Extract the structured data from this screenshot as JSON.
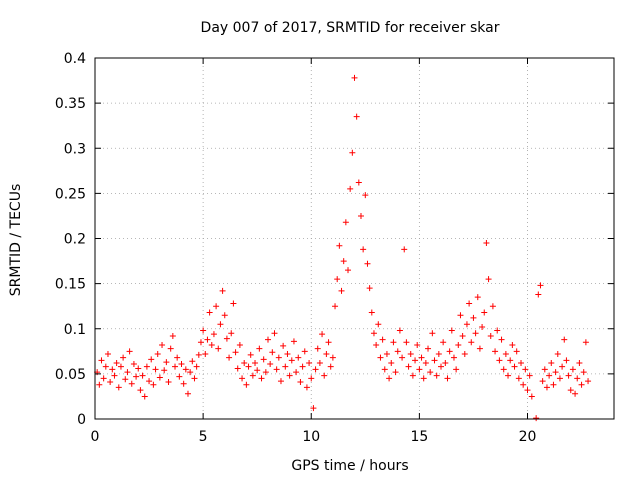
{
  "chart_data": {
    "type": "scatter",
    "title": "Day 007 of 2017, SRMTID for receiver skar",
    "xlabel": "GPS time / hours",
    "ylabel": "SRMTID / TECUs",
    "xlim": [
      0,
      24
    ],
    "ylim": [
      0,
      0.4
    ],
    "x_ticks": [
      0,
      5,
      10,
      15,
      20
    ],
    "x_tick_labels": [
      "0",
      "5",
      "10",
      "15",
      "20"
    ],
    "y_ticks": [
      0,
      0.05,
      0.1,
      0.15,
      0.2,
      0.25,
      0.3,
      0.35,
      0.4
    ],
    "y_tick_labels": [
      "0",
      "0.05",
      "0.1",
      "0.15",
      "0.2",
      "0.25",
      "0.3",
      "0.35",
      "0.4"
    ],
    "grid": true,
    "marker": "plus",
    "color": "#ff0000",
    "series": [
      {
        "name": "SRMTID",
        "points": [
          [
            0.1,
            0.052
          ],
          [
            0.2,
            0.038
          ],
          [
            0.3,
            0.065
          ],
          [
            0.4,
            0.045
          ],
          [
            0.5,
            0.058
          ],
          [
            0.6,
            0.072
          ],
          [
            0.7,
            0.041
          ],
          [
            0.8,
            0.055
          ],
          [
            0.9,
            0.048
          ],
          [
            1.0,
            0.062
          ],
          [
            1.1,
            0.035
          ],
          [
            1.2,
            0.058
          ],
          [
            1.3,
            0.068
          ],
          [
            1.4,
            0.044
          ],
          [
            1.5,
            0.052
          ],
          [
            1.6,
            0.075
          ],
          [
            1.7,
            0.039
          ],
          [
            1.8,
            0.061
          ],
          [
            1.9,
            0.047
          ],
          [
            2.0,
            0.056
          ],
          [
            2.1,
            0.032
          ],
          [
            2.2,
            0.048
          ],
          [
            2.3,
            0.025
          ],
          [
            2.4,
            0.058
          ],
          [
            2.5,
            0.042
          ],
          [
            2.6,
            0.066
          ],
          [
            2.7,
            0.038
          ],
          [
            2.8,
            0.055
          ],
          [
            2.9,
            0.072
          ],
          [
            3.0,
            0.046
          ],
          [
            3.1,
            0.082
          ],
          [
            3.2,
            0.054
          ],
          [
            3.3,
            0.063
          ],
          [
            3.4,
            0.041
          ],
          [
            3.5,
            0.078
          ],
          [
            3.6,
            0.092
          ],
          [
            3.7,
            0.058
          ],
          [
            3.8,
            0.068
          ],
          [
            3.9,
            0.047
          ],
          [
            4.0,
            0.061
          ],
          [
            4.1,
            0.039
          ],
          [
            4.2,
            0.055
          ],
          [
            4.3,
            0.028
          ],
          [
            4.4,
            0.052
          ],
          [
            4.5,
            0.064
          ],
          [
            4.6,
            0.045
          ],
          [
            4.7,
            0.058
          ],
          [
            4.8,
            0.071
          ],
          [
            4.9,
            0.085
          ],
          [
            5.0,
            0.098
          ],
          [
            5.1,
            0.072
          ],
          [
            5.2,
            0.088
          ],
          [
            5.3,
            0.118
          ],
          [
            5.4,
            0.082
          ],
          [
            5.5,
            0.094
          ],
          [
            5.6,
            0.125
          ],
          [
            5.7,
            0.078
          ],
          [
            5.8,
            0.105
          ],
          [
            5.9,
            0.142
          ],
          [
            6.0,
            0.115
          ],
          [
            6.1,
            0.089
          ],
          [
            6.2,
            0.068
          ],
          [
            6.3,
            0.095
          ],
          [
            6.4,
            0.128
          ],
          [
            6.5,
            0.074
          ],
          [
            6.6,
            0.056
          ],
          [
            6.7,
            0.082
          ],
          [
            6.8,
            0.045
          ],
          [
            6.9,
            0.062
          ],
          [
            7.0,
            0.038
          ],
          [
            7.1,
            0.058
          ],
          [
            7.2,
            0.071
          ],
          [
            7.3,
            0.048
          ],
          [
            7.4,
            0.062
          ],
          [
            7.5,
            0.054
          ],
          [
            7.6,
            0.078
          ],
          [
            7.7,
            0.045
          ],
          [
            7.8,
            0.066
          ],
          [
            7.9,
            0.052
          ],
          [
            8.0,
            0.088
          ],
          [
            8.1,
            0.061
          ],
          [
            8.2,
            0.074
          ],
          [
            8.3,
            0.095
          ],
          [
            8.4,
            0.055
          ],
          [
            8.5,
            0.068
          ],
          [
            8.6,
            0.042
          ],
          [
            8.7,
            0.081
          ],
          [
            8.8,
            0.058
          ],
          [
            8.9,
            0.072
          ],
          [
            9.0,
            0.048
          ],
          [
            9.1,
            0.065
          ],
          [
            9.2,
            0.086
          ],
          [
            9.3,
            0.052
          ],
          [
            9.4,
            0.068
          ],
          [
            9.5,
            0.041
          ],
          [
            9.6,
            0.058
          ],
          [
            9.7,
            0.075
          ],
          [
            9.8,
            0.035
          ],
          [
            9.9,
            0.062
          ],
          [
            10.0,
            0.045
          ],
          [
            10.1,
            0.012
          ],
          [
            10.2,
            0.055
          ],
          [
            10.3,
            0.078
          ],
          [
            10.4,
            0.062
          ],
          [
            10.5,
            0.094
          ],
          [
            10.6,
            0.048
          ],
          [
            10.7,
            0.072
          ],
          [
            10.8,
            0.085
          ],
          [
            10.9,
            0.058
          ],
          [
            11.0,
            0.068
          ],
          [
            11.1,
            0.125
          ],
          [
            11.2,
            0.155
          ],
          [
            11.3,
            0.192
          ],
          [
            11.4,
            0.142
          ],
          [
            11.5,
            0.175
          ],
          [
            11.6,
            0.218
          ],
          [
            11.7,
            0.165
          ],
          [
            11.8,
            0.255
          ],
          [
            11.9,
            0.295
          ],
          [
            12.0,
            0.378
          ],
          [
            12.1,
            0.335
          ],
          [
            12.2,
            0.262
          ],
          [
            12.3,
            0.225
          ],
          [
            12.4,
            0.188
          ],
          [
            12.5,
            0.248
          ],
          [
            12.6,
            0.172
          ],
          [
            12.7,
            0.145
          ],
          [
            12.8,
            0.118
          ],
          [
            12.9,
            0.095
          ],
          [
            13.0,
            0.082
          ],
          [
            13.1,
            0.105
          ],
          [
            13.2,
            0.068
          ],
          [
            13.3,
            0.088
          ],
          [
            13.4,
            0.055
          ],
          [
            13.5,
            0.072
          ],
          [
            13.6,
            0.045
          ],
          [
            13.7,
            0.062
          ],
          [
            13.8,
            0.085
          ],
          [
            13.9,
            0.052
          ],
          [
            14.0,
            0.075
          ],
          [
            14.1,
            0.098
          ],
          [
            14.2,
            0.068
          ],
          [
            14.3,
            0.188
          ],
          [
            14.4,
            0.085
          ],
          [
            14.5,
            0.058
          ],
          [
            14.6,
            0.072
          ],
          [
            14.7,
            0.048
          ],
          [
            14.8,
            0.065
          ],
          [
            14.9,
            0.082
          ],
          [
            15.0,
            0.055
          ],
          [
            15.1,
            0.068
          ],
          [
            15.2,
            0.045
          ],
          [
            15.3,
            0.062
          ],
          [
            15.4,
            0.078
          ],
          [
            15.5,
            0.052
          ],
          [
            15.6,
            0.095
          ],
          [
            15.7,
            0.065
          ],
          [
            15.8,
            0.048
          ],
          [
            15.9,
            0.072
          ],
          [
            16.0,
            0.058
          ],
          [
            16.1,
            0.085
          ],
          [
            16.2,
            0.062
          ],
          [
            16.3,
            0.045
          ],
          [
            16.4,
            0.075
          ],
          [
            16.5,
            0.098
          ],
          [
            16.6,
            0.068
          ],
          [
            16.7,
            0.055
          ],
          [
            16.8,
            0.082
          ],
          [
            16.9,
            0.115
          ],
          [
            17.0,
            0.092
          ],
          [
            17.1,
            0.072
          ],
          [
            17.2,
            0.105
          ],
          [
            17.3,
            0.128
          ],
          [
            17.4,
            0.085
          ],
          [
            17.5,
            0.112
          ],
          [
            17.6,
            0.095
          ],
          [
            17.7,
            0.135
          ],
          [
            17.8,
            0.078
          ],
          [
            17.9,
            0.102
          ],
          [
            18.0,
            0.118
          ],
          [
            18.1,
            0.195
          ],
          [
            18.2,
            0.155
          ],
          [
            18.3,
            0.092
          ],
          [
            18.4,
            0.125
          ],
          [
            18.5,
            0.075
          ],
          [
            18.6,
            0.098
          ],
          [
            18.7,
            0.065
          ],
          [
            18.8,
            0.088
          ],
          [
            18.9,
            0.055
          ],
          [
            19.0,
            0.072
          ],
          [
            19.1,
            0.048
          ],
          [
            19.2,
            0.065
          ],
          [
            19.3,
            0.082
          ],
          [
            19.4,
            0.058
          ],
          [
            19.5,
            0.075
          ],
          [
            19.6,
            0.045
          ],
          [
            19.7,
            0.062
          ],
          [
            19.8,
            0.038
          ],
          [
            19.9,
            0.055
          ],
          [
            20.0,
            0.032
          ],
          [
            20.1,
            0.048
          ],
          [
            20.2,
            0.025
          ],
          [
            20.4,
            0.001
          ],
          [
            20.5,
            0.138
          ],
          [
            20.6,
            0.148
          ],
          [
            20.7,
            0.042
          ],
          [
            20.8,
            0.055
          ],
          [
            20.9,
            0.035
          ],
          [
            21.0,
            0.048
          ],
          [
            21.1,
            0.062
          ],
          [
            21.2,
            0.038
          ],
          [
            21.3,
            0.052
          ],
          [
            21.4,
            0.072
          ],
          [
            21.5,
            0.045
          ],
          [
            21.6,
            0.058
          ],
          [
            21.7,
            0.088
          ],
          [
            21.8,
            0.065
          ],
          [
            21.9,
            0.048
          ],
          [
            22.0,
            0.032
          ],
          [
            22.1,
            0.055
          ],
          [
            22.2,
            0.028
          ],
          [
            22.3,
            0.045
          ],
          [
            22.4,
            0.062
          ],
          [
            22.5,
            0.038
          ],
          [
            22.6,
            0.052
          ],
          [
            22.7,
            0.085
          ],
          [
            22.8,
            0.042
          ]
        ]
      }
    ]
  }
}
